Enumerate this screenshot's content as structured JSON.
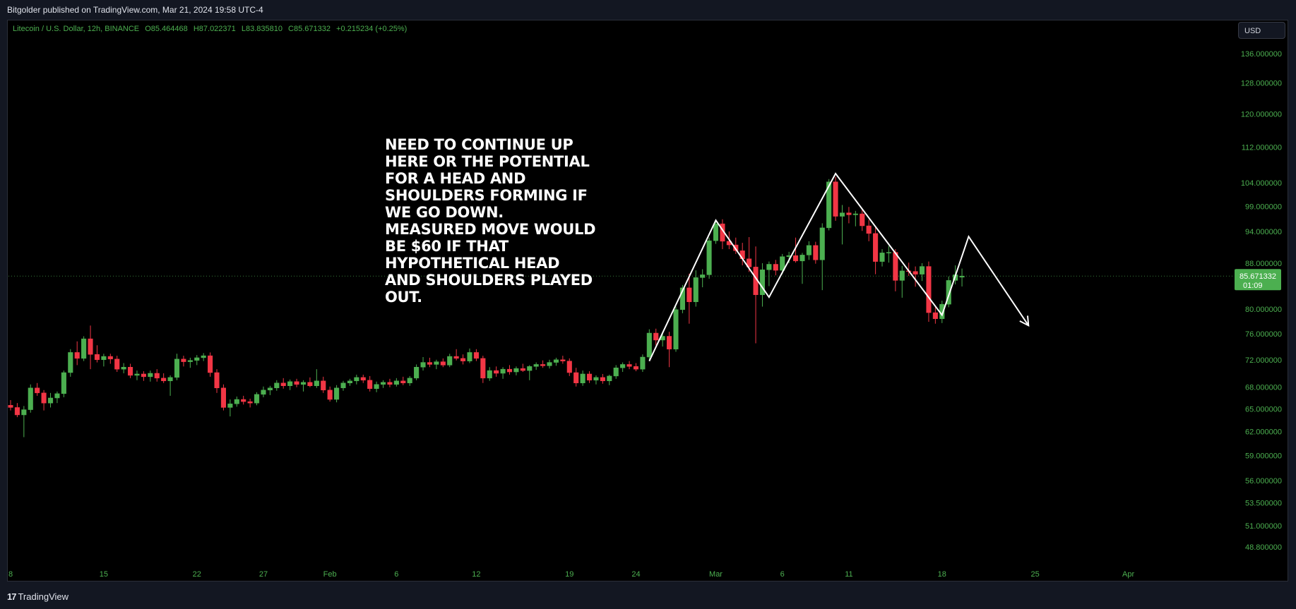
{
  "header": {
    "published": "Bitgolder published on TradingView.com, Mar 21, 2024 19:58 UTC-4"
  },
  "legend": {
    "symbol": "Litecoin / U.S. Dollar, 12h, BINANCE",
    "open": "O85.464468",
    "high": "H87.022371",
    "low": "L83.835810",
    "close": "C85.671332",
    "change": "+0.215234 (+0.25%)"
  },
  "currency_button": "USD",
  "annotation_text": "NEED TO CONTINUE UP\nHERE OR THE POTENTIAL\nFOR A HEAD AND\nSHOULDERS FORMING IF\nWE GO DOWN.\nMEASURED MOVE WOULD\nBE $60 IF THAT\nHYPOTHETICAL HEAD\nAND SHOULDERS PLAYED\nOUT.",
  "price_tag": {
    "price": "85.671332",
    "countdown": "01:09"
  },
  "footer": {
    "brand": "TradingView",
    "brand_glyph": "17"
  },
  "colors": {
    "up": "#4caf50",
    "down": "#f23645",
    "axis_text": "#4caf50",
    "background": "#000000",
    "drawing": "#ffffff"
  },
  "chart_data": {
    "type": "candlestick",
    "symbol": "LTCUSD",
    "interval": "12h",
    "y_tick_labels": [
      "136.000000",
      "128.000000",
      "120.000000",
      "112.000000",
      "104.000000",
      "99.000000",
      "94.000000",
      "88.000000",
      "80.000000",
      "76.000000",
      "72.000000",
      "68.000000",
      "65.000000",
      "62.000000",
      "59.000000",
      "56.000000",
      "53.500000",
      "51.000000",
      "48.800000"
    ],
    "x_tick_labels": [
      "8",
      "15",
      "22",
      "27",
      "Feb",
      "6",
      "12",
      "19",
      "24",
      "Mar",
      "6",
      "11",
      "18",
      "25",
      "Apr"
    ],
    "x_tick_positions": [
      0,
      14,
      28,
      38,
      48,
      58,
      70,
      84,
      94,
      106,
      116,
      126,
      140,
      154,
      168
    ],
    "ylim": [
      48.8,
      136
    ],
    "y_scale": "log",
    "candles": [
      {
        "i": 0,
        "o": 65.5,
        "h": 66.2,
        "l": 64.8,
        "c": 65.2
      },
      {
        "i": 1,
        "o": 65.2,
        "h": 65.8,
        "l": 63.9,
        "c": 64.2
      },
      {
        "i": 2,
        "o": 64.2,
        "h": 65.4,
        "l": 61.3,
        "c": 64.9
      },
      {
        "i": 3,
        "o": 64.9,
        "h": 68.4,
        "l": 64.5,
        "c": 67.9
      },
      {
        "i": 4,
        "o": 67.9,
        "h": 68.6,
        "l": 66.8,
        "c": 67.2
      },
      {
        "i": 5,
        "o": 67.2,
        "h": 67.6,
        "l": 64.8,
        "c": 65.8
      },
      {
        "i": 6,
        "o": 65.8,
        "h": 67.2,
        "l": 65.2,
        "c": 66.5
      },
      {
        "i": 7,
        "o": 66.5,
        "h": 67.4,
        "l": 65.8,
        "c": 67.1
      },
      {
        "i": 8,
        "o": 67.1,
        "h": 70.4,
        "l": 66.6,
        "c": 70.1
      },
      {
        "i": 9,
        "o": 70.1,
        "h": 73.6,
        "l": 69.5,
        "c": 73.1
      },
      {
        "i": 10,
        "o": 73.1,
        "h": 74.8,
        "l": 71.2,
        "c": 72.2
      },
      {
        "i": 11,
        "o": 72.2,
        "h": 75.6,
        "l": 71.8,
        "c": 75.2
      },
      {
        "i": 12,
        "o": 75.2,
        "h": 77.3,
        "l": 70.6,
        "c": 72.8
      },
      {
        "i": 13,
        "o": 72.8,
        "h": 74.2,
        "l": 71.6,
        "c": 72.0
      },
      {
        "i": 14,
        "o": 72.0,
        "h": 72.9,
        "l": 71.0,
        "c": 72.5
      },
      {
        "i": 15,
        "o": 72.5,
        "h": 72.9,
        "l": 71.4,
        "c": 72.1
      },
      {
        "i": 16,
        "o": 72.1,
        "h": 72.6,
        "l": 70.2,
        "c": 70.6
      },
      {
        "i": 17,
        "o": 70.6,
        "h": 71.5,
        "l": 70.0,
        "c": 70.9
      },
      {
        "i": 18,
        "o": 70.9,
        "h": 71.4,
        "l": 69.3,
        "c": 69.7
      },
      {
        "i": 19,
        "o": 69.7,
        "h": 70.4,
        "l": 69.0,
        "c": 69.9
      },
      {
        "i": 20,
        "o": 69.9,
        "h": 70.3,
        "l": 68.9,
        "c": 69.5
      },
      {
        "i": 21,
        "o": 69.5,
        "h": 70.4,
        "l": 68.8,
        "c": 70.0
      },
      {
        "i": 22,
        "o": 70.0,
        "h": 70.6,
        "l": 68.8,
        "c": 69.3
      },
      {
        "i": 23,
        "o": 69.3,
        "h": 70.0,
        "l": 68.6,
        "c": 68.9
      },
      {
        "i": 24,
        "o": 68.9,
        "h": 69.7,
        "l": 66.8,
        "c": 69.4
      },
      {
        "i": 25,
        "o": 69.4,
        "h": 72.9,
        "l": 69.0,
        "c": 72.1
      },
      {
        "i": 26,
        "o": 72.1,
        "h": 72.6,
        "l": 71.0,
        "c": 71.7
      },
      {
        "i": 27,
        "o": 71.7,
        "h": 72.3,
        "l": 70.8,
        "c": 71.9
      },
      {
        "i": 28,
        "o": 71.9,
        "h": 72.7,
        "l": 71.2,
        "c": 72.3
      },
      {
        "i": 29,
        "o": 72.3,
        "h": 73.0,
        "l": 71.8,
        "c": 72.6
      },
      {
        "i": 30,
        "o": 72.6,
        "h": 73.1,
        "l": 69.5,
        "c": 70.1
      },
      {
        "i": 31,
        "o": 70.1,
        "h": 70.6,
        "l": 67.2,
        "c": 67.9
      },
      {
        "i": 32,
        "o": 67.9,
        "h": 68.4,
        "l": 64.8,
        "c": 65.2
      },
      {
        "i": 33,
        "o": 65.2,
        "h": 66.3,
        "l": 64.0,
        "c": 65.7
      },
      {
        "i": 34,
        "o": 65.7,
        "h": 66.7,
        "l": 65.3,
        "c": 66.3
      },
      {
        "i": 35,
        "o": 66.3,
        "h": 66.8,
        "l": 65.6,
        "c": 66.0
      },
      {
        "i": 36,
        "o": 66.0,
        "h": 66.4,
        "l": 65.2,
        "c": 65.8
      },
      {
        "i": 37,
        "o": 65.8,
        "h": 67.3,
        "l": 65.5,
        "c": 67.0
      },
      {
        "i": 38,
        "o": 67.0,
        "h": 68.1,
        "l": 66.6,
        "c": 67.6
      },
      {
        "i": 39,
        "o": 67.6,
        "h": 68.2,
        "l": 66.9,
        "c": 67.9
      },
      {
        "i": 40,
        "o": 67.9,
        "h": 69.0,
        "l": 67.5,
        "c": 68.6
      },
      {
        "i": 41,
        "o": 68.6,
        "h": 69.3,
        "l": 67.8,
        "c": 68.2
      },
      {
        "i": 42,
        "o": 68.2,
        "h": 69.1,
        "l": 67.6,
        "c": 68.8
      },
      {
        "i": 43,
        "o": 68.8,
        "h": 69.2,
        "l": 68.0,
        "c": 68.4
      },
      {
        "i": 44,
        "o": 68.4,
        "h": 69.0,
        "l": 67.4,
        "c": 68.7
      },
      {
        "i": 45,
        "o": 68.7,
        "h": 69.4,
        "l": 68.0,
        "c": 68.2
      },
      {
        "i": 46,
        "o": 68.2,
        "h": 70.6,
        "l": 67.9,
        "c": 68.9
      },
      {
        "i": 47,
        "o": 68.9,
        "h": 69.5,
        "l": 67.2,
        "c": 67.6
      },
      {
        "i": 48,
        "o": 67.6,
        "h": 68.1,
        "l": 66.0,
        "c": 66.3
      },
      {
        "i": 49,
        "o": 66.3,
        "h": 68.3,
        "l": 65.9,
        "c": 67.9
      },
      {
        "i": 50,
        "o": 67.9,
        "h": 68.9,
        "l": 67.5,
        "c": 68.6
      },
      {
        "i": 51,
        "o": 68.6,
        "h": 69.2,
        "l": 68.2,
        "c": 68.9
      },
      {
        "i": 52,
        "o": 68.9,
        "h": 69.8,
        "l": 68.4,
        "c": 69.4
      },
      {
        "i": 53,
        "o": 69.4,
        "h": 69.8,
        "l": 68.6,
        "c": 69.0
      },
      {
        "i": 54,
        "o": 69.0,
        "h": 69.6,
        "l": 67.4,
        "c": 67.8
      },
      {
        "i": 55,
        "o": 67.8,
        "h": 68.8,
        "l": 67.3,
        "c": 68.4
      },
      {
        "i": 56,
        "o": 68.4,
        "h": 69.0,
        "l": 67.9,
        "c": 68.7
      },
      {
        "i": 57,
        "o": 68.7,
        "h": 69.2,
        "l": 68.0,
        "c": 68.4
      },
      {
        "i": 58,
        "o": 68.4,
        "h": 69.3,
        "l": 68.1,
        "c": 68.9
      },
      {
        "i": 59,
        "o": 68.9,
        "h": 69.5,
        "l": 68.3,
        "c": 68.6
      },
      {
        "i": 60,
        "o": 68.6,
        "h": 69.6,
        "l": 68.2,
        "c": 69.3
      },
      {
        "i": 61,
        "o": 69.3,
        "h": 71.3,
        "l": 69.0,
        "c": 70.9
      },
      {
        "i": 62,
        "o": 70.9,
        "h": 72.4,
        "l": 70.4,
        "c": 71.6
      },
      {
        "i": 63,
        "o": 71.6,
        "h": 72.3,
        "l": 70.9,
        "c": 71.3
      },
      {
        "i": 64,
        "o": 71.3,
        "h": 72.0,
        "l": 70.6,
        "c": 71.7
      },
      {
        "i": 65,
        "o": 71.7,
        "h": 72.2,
        "l": 70.9,
        "c": 71.2
      },
      {
        "i": 66,
        "o": 71.2,
        "h": 72.9,
        "l": 70.9,
        "c": 72.5
      },
      {
        "i": 67,
        "o": 72.5,
        "h": 73.6,
        "l": 71.9,
        "c": 72.2
      },
      {
        "i": 68,
        "o": 72.2,
        "h": 72.8,
        "l": 71.3,
        "c": 71.8
      },
      {
        "i": 69,
        "o": 71.8,
        "h": 73.7,
        "l": 71.5,
        "c": 73.1
      },
      {
        "i": 70,
        "o": 73.1,
        "h": 73.6,
        "l": 71.8,
        "c": 72.2
      },
      {
        "i": 71,
        "o": 72.2,
        "h": 72.6,
        "l": 68.6,
        "c": 69.3
      },
      {
        "i": 72,
        "o": 69.3,
        "h": 70.9,
        "l": 68.9,
        "c": 70.4
      },
      {
        "i": 73,
        "o": 70.4,
        "h": 71.0,
        "l": 69.5,
        "c": 70.0
      },
      {
        "i": 74,
        "o": 70.0,
        "h": 70.9,
        "l": 69.2,
        "c": 70.6
      },
      {
        "i": 75,
        "o": 70.6,
        "h": 71.2,
        "l": 69.8,
        "c": 70.2
      },
      {
        "i": 76,
        "o": 70.2,
        "h": 71.0,
        "l": 69.7,
        "c": 70.7
      },
      {
        "i": 77,
        "o": 70.7,
        "h": 71.4,
        "l": 70.2,
        "c": 70.4
      },
      {
        "i": 78,
        "o": 70.4,
        "h": 71.2,
        "l": 69.0,
        "c": 71.0
      },
      {
        "i": 79,
        "o": 71.0,
        "h": 71.6,
        "l": 70.5,
        "c": 71.3
      },
      {
        "i": 80,
        "o": 71.3,
        "h": 71.9,
        "l": 70.8,
        "c": 71.1
      },
      {
        "i": 81,
        "o": 71.1,
        "h": 72.0,
        "l": 70.7,
        "c": 71.6
      },
      {
        "i": 82,
        "o": 71.6,
        "h": 72.3,
        "l": 71.1,
        "c": 72.0
      },
      {
        "i": 83,
        "o": 72.0,
        "h": 72.6,
        "l": 71.4,
        "c": 71.8
      },
      {
        "i": 84,
        "o": 71.8,
        "h": 72.2,
        "l": 69.6,
        "c": 70.1
      },
      {
        "i": 85,
        "o": 70.1,
        "h": 70.8,
        "l": 68.1,
        "c": 68.6
      },
      {
        "i": 86,
        "o": 68.6,
        "h": 70.4,
        "l": 68.2,
        "c": 69.9
      },
      {
        "i": 87,
        "o": 69.9,
        "h": 70.3,
        "l": 68.6,
        "c": 69.0
      },
      {
        "i": 88,
        "o": 69.0,
        "h": 69.7,
        "l": 68.4,
        "c": 69.4
      },
      {
        "i": 89,
        "o": 69.4,
        "h": 69.9,
        "l": 68.5,
        "c": 68.9
      },
      {
        "i": 90,
        "o": 68.9,
        "h": 69.8,
        "l": 68.3,
        "c": 69.6
      },
      {
        "i": 91,
        "o": 69.6,
        "h": 71.2,
        "l": 69.2,
        "c": 70.8
      },
      {
        "i": 92,
        "o": 70.8,
        "h": 71.6,
        "l": 70.2,
        "c": 71.3
      },
      {
        "i": 93,
        "o": 71.3,
        "h": 71.8,
        "l": 70.6,
        "c": 71.0
      },
      {
        "i": 94,
        "o": 71.0,
        "h": 71.5,
        "l": 70.3,
        "c": 70.6
      },
      {
        "i": 95,
        "o": 70.6,
        "h": 72.8,
        "l": 70.2,
        "c": 72.4
      },
      {
        "i": 96,
        "o": 72.4,
        "h": 76.7,
        "l": 72.0,
        "c": 76.1
      },
      {
        "i": 97,
        "o": 76.1,
        "h": 76.8,
        "l": 74.2,
        "c": 75.0
      },
      {
        "i": 98,
        "o": 75.0,
        "h": 76.3,
        "l": 74.0,
        "c": 75.6
      },
      {
        "i": 99,
        "o": 75.6,
        "h": 76.3,
        "l": 70.9,
        "c": 73.6
      },
      {
        "i": 100,
        "o": 73.6,
        "h": 80.4,
        "l": 73.2,
        "c": 79.9
      },
      {
        "i": 101,
        "o": 79.9,
        "h": 84.1,
        "l": 79.3,
        "c": 83.6
      },
      {
        "i": 102,
        "o": 83.6,
        "h": 86.1,
        "l": 77.6,
        "c": 81.2
      },
      {
        "i": 103,
        "o": 81.2,
        "h": 86.7,
        "l": 80.4,
        "c": 85.4
      },
      {
        "i": 104,
        "o": 85.4,
        "h": 86.9,
        "l": 83.7,
        "c": 85.9
      },
      {
        "i": 105,
        "o": 85.9,
        "h": 92.8,
        "l": 85.2,
        "c": 92.2
      },
      {
        "i": 106,
        "o": 92.2,
        "h": 96.2,
        "l": 91.6,
        "c": 95.5
      },
      {
        "i": 107,
        "o": 95.5,
        "h": 96.4,
        "l": 90.6,
        "c": 92.1
      },
      {
        "i": 108,
        "o": 92.1,
        "h": 94.0,
        "l": 90.6,
        "c": 91.4
      },
      {
        "i": 109,
        "o": 91.4,
        "h": 92.8,
        "l": 89.7,
        "c": 90.3
      },
      {
        "i": 110,
        "o": 90.3,
        "h": 91.8,
        "l": 87.6,
        "c": 88.8
      },
      {
        "i": 111,
        "o": 88.8,
        "h": 92.9,
        "l": 86.4,
        "c": 87.3
      },
      {
        "i": 112,
        "o": 87.3,
        "h": 91.1,
        "l": 74.5,
        "c": 82.4
      },
      {
        "i": 113,
        "o": 82.4,
        "h": 88.0,
        "l": 80.4,
        "c": 86.8
      },
      {
        "i": 114,
        "o": 86.8,
        "h": 88.3,
        "l": 83.9,
        "c": 87.8
      },
      {
        "i": 115,
        "o": 87.8,
        "h": 88.6,
        "l": 85.8,
        "c": 86.7
      },
      {
        "i": 116,
        "o": 86.7,
        "h": 89.7,
        "l": 86.0,
        "c": 89.2
      },
      {
        "i": 117,
        "o": 89.2,
        "h": 90.1,
        "l": 88.0,
        "c": 89.4
      },
      {
        "i": 118,
        "o": 89.4,
        "h": 92.8,
        "l": 88.1,
        "c": 88.4
      },
      {
        "i": 119,
        "o": 88.4,
        "h": 89.9,
        "l": 84.3,
        "c": 89.5
      },
      {
        "i": 120,
        "o": 89.5,
        "h": 92.1,
        "l": 88.6,
        "c": 91.3
      },
      {
        "i": 121,
        "o": 91.3,
        "h": 92.0,
        "l": 87.9,
        "c": 88.6
      },
      {
        "i": 122,
        "o": 88.6,
        "h": 95.6,
        "l": 83.2,
        "c": 94.7
      },
      {
        "i": 123,
        "o": 94.7,
        "h": 104.8,
        "l": 94.2,
        "c": 104.2
      },
      {
        "i": 124,
        "o": 104.2,
        "h": 105.3,
        "l": 96.1,
        "c": 97.0
      },
      {
        "i": 125,
        "o": 97.0,
        "h": 99.3,
        "l": 91.5,
        "c": 97.7
      },
      {
        "i": 126,
        "o": 97.7,
        "h": 98.9,
        "l": 95.6,
        "c": 97.3
      },
      {
        "i": 127,
        "o": 97.3,
        "h": 98.1,
        "l": 95.0,
        "c": 97.5
      },
      {
        "i": 128,
        "o": 97.5,
        "h": 98.5,
        "l": 94.1,
        "c": 95.1
      },
      {
        "i": 129,
        "o": 95.1,
        "h": 96.3,
        "l": 92.1,
        "c": 93.6
      },
      {
        "i": 130,
        "o": 93.6,
        "h": 95.0,
        "l": 86.0,
        "c": 88.3
      },
      {
        "i": 131,
        "o": 88.3,
        "h": 90.6,
        "l": 87.4,
        "c": 89.9
      },
      {
        "i": 132,
        "o": 89.9,
        "h": 91.2,
        "l": 88.1,
        "c": 90.0
      },
      {
        "i": 133,
        "o": 90.0,
        "h": 90.6,
        "l": 83.0,
        "c": 84.9
      },
      {
        "i": 134,
        "o": 84.9,
        "h": 87.5,
        "l": 81.9,
        "c": 86.6
      },
      {
        "i": 135,
        "o": 86.6,
        "h": 88.1,
        "l": 85.7,
        "c": 86.5
      },
      {
        "i": 136,
        "o": 86.5,
        "h": 87.4,
        "l": 83.8,
        "c": 86.0
      },
      {
        "i": 137,
        "o": 86.0,
        "h": 88.0,
        "l": 84.8,
        "c": 87.4
      },
      {
        "i": 138,
        "o": 87.4,
        "h": 88.3,
        "l": 77.9,
        "c": 79.4
      },
      {
        "i": 139,
        "o": 79.4,
        "h": 80.6,
        "l": 77.6,
        "c": 78.4
      },
      {
        "i": 140,
        "o": 78.4,
        "h": 81.4,
        "l": 77.7,
        "c": 80.8
      },
      {
        "i": 141,
        "o": 80.8,
        "h": 85.6,
        "l": 80.3,
        "c": 84.9
      },
      {
        "i": 142,
        "o": 84.9,
        "h": 87.6,
        "l": 84.2,
        "c": 85.9
      },
      {
        "i": 143,
        "o": 85.464468,
        "h": 87.022371,
        "l": 83.83581,
        "c": 85.671332
      }
    ],
    "drawings": [
      {
        "type": "polyline",
        "arrow": true,
        "points": [
          [
            96,
            71.8
          ],
          [
            106,
            96.2
          ],
          [
            114,
            82.0
          ],
          [
            124,
            106.0
          ],
          [
            140,
            79.0
          ],
          [
            144,
            93.0
          ],
          [
            153,
            77.3
          ]
        ]
      }
    ],
    "last_price": 85.671332
  }
}
